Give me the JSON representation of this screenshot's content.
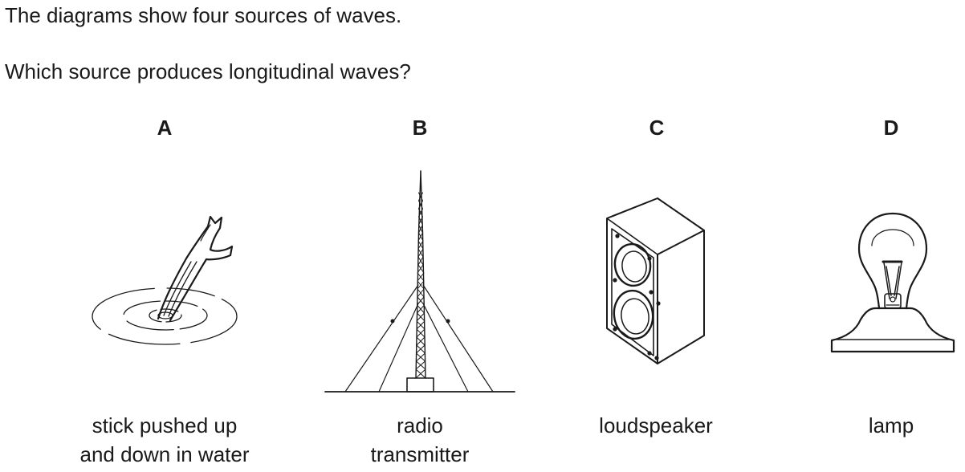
{
  "question": {
    "line1": "The diagrams show four sources of waves.",
    "line2": "Which source produces longitudinal waves?"
  },
  "options": [
    {
      "letter": "A",
      "caption_line1": "stick pushed up",
      "caption_line2": "and down in water",
      "icon": "stick-in-water-icon"
    },
    {
      "letter": "B",
      "caption_line1": "radio",
      "caption_line2": "transmitter",
      "icon": "radio-transmitter-icon"
    },
    {
      "letter": "C",
      "caption_line1": "loudspeaker",
      "caption_line2": "",
      "icon": "loudspeaker-icon"
    },
    {
      "letter": "D",
      "caption_line1": "lamp",
      "caption_line2": "",
      "icon": "lamp-icon"
    }
  ]
}
